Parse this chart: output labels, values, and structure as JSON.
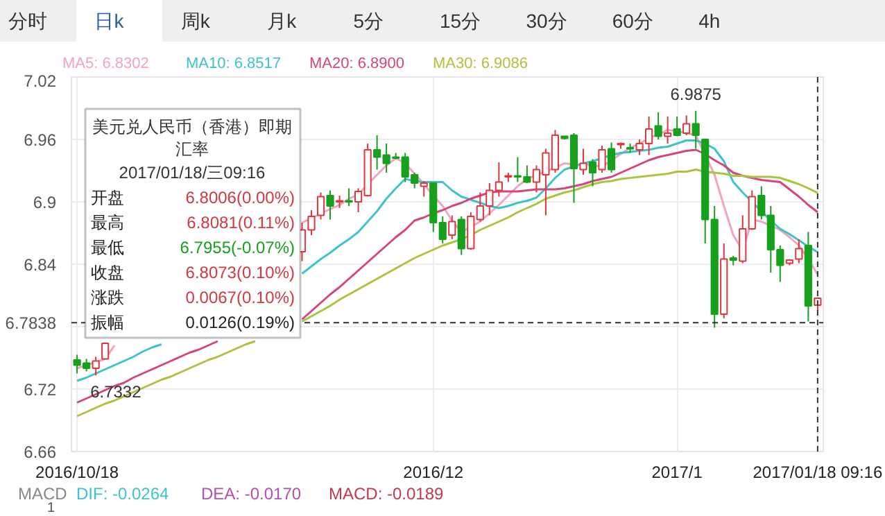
{
  "chart_data": {
    "type": "candlestick",
    "categories": [
      "2016/10/18",
      null,
      null,
      null,
      null,
      null,
      null,
      null,
      null,
      null,
      null,
      null,
      null,
      null,
      null,
      null,
      null,
      null,
      null,
      null,
      null,
      null,
      null,
      null,
      null,
      null,
      null,
      null,
      null,
      null,
      null,
      null,
      null,
      null,
      null,
      null,
      null,
      null,
      "2016/12",
      null,
      null,
      null,
      null,
      null,
      null,
      null,
      null,
      null,
      null,
      null,
      null,
      null,
      null,
      null,
      null,
      null,
      null,
      null,
      null,
      null,
      null,
      null,
      null,
      null,
      "2017/1",
      null,
      null,
      null,
      null,
      null,
      null,
      null,
      null,
      null,
      null,
      null,
      null,
      null,
      null,
      "2017/01/18 09:16"
    ],
    "ohlc": [
      [
        6.748,
        6.753,
        6.735,
        6.743
      ],
      [
        6.745,
        6.749,
        6.737,
        6.74
      ],
      [
        6.74,
        6.751,
        6.7332,
        6.747
      ],
      [
        6.749,
        6.764,
        6.749,
        6.764
      ],
      null,
      null,
      null,
      null,
      null,
      null,
      null,
      null,
      null,
      null,
      null,
      null,
      null,
      null,
      null,
      null,
      null,
      null,
      null,
      null,
      [
        6.852,
        6.88,
        6.843,
        6.873
      ],
      [
        6.873,
        6.892,
        6.868,
        6.886
      ],
      [
        6.887,
        6.909,
        6.883,
        6.905
      ],
      [
        6.906,
        6.911,
        6.883,
        6.896
      ],
      [
        6.9,
        6.906,
        6.894,
        6.901
      ],
      [
        6.901,
        6.913,
        6.896,
        6.9
      ],
      [
        6.9,
        6.913,
        6.89,
        6.91
      ],
      [
        6.906,
        6.956,
        6.905,
        6.95
      ],
      [
        6.95,
        6.964,
        6.931,
        6.943
      ],
      [
        6.945,
        6.956,
        6.928,
        6.937
      ],
      [
        6.943,
        6.947,
        6.941,
        6.942
      ],
      [
        6.943,
        6.947,
        6.919,
        6.924
      ],
      [
        6.926,
        6.928,
        6.913,
        6.918
      ],
      [
        6.915,
        6.92,
        6.905,
        6.918
      ],
      [
        6.918,
        6.918,
        6.871,
        6.88
      ],
      [
        6.88,
        6.886,
        6.86,
        6.864
      ],
      [
        6.868,
        6.887,
        6.864,
        6.881
      ],
      [
        6.883,
        6.886,
        6.849,
        6.855
      ],
      [
        6.855,
        6.89,
        6.854,
        6.886
      ],
      [
        6.883,
        6.909,
        6.881,
        6.896
      ],
      [
        6.896,
        6.918,
        6.887,
        6.911
      ],
      [
        6.911,
        6.938,
        6.905,
        6.919
      ],
      [
        6.924,
        6.928,
        6.919,
        6.925
      ],
      [
        6.925,
        6.943,
        6.919,
        6.924
      ],
      [
        6.924,
        6.935,
        6.918,
        6.919
      ],
      [
        6.919,
        6.935,
        6.909,
        6.931
      ],
      [
        6.926,
        6.951,
        6.887,
        6.947
      ],
      [
        6.931,
        6.969,
        6.928,
        6.964
      ],
      [
        6.963,
        6.963,
        6.96,
        6.961
      ],
      [
        6.964,
        6.966,
        6.899,
        6.932
      ],
      [
        6.931,
        6.951,
        6.926,
        6.937
      ],
      [
        6.938,
        6.941,
        6.915,
        6.928
      ],
      [
        6.931,
        6.954,
        6.928,
        6.95
      ],
      [
        6.951,
        6.957,
        6.928,
        6.931
      ],
      [
        6.955,
        6.957,
        6.951,
        6.956
      ],
      [
        6.952,
        6.956,
        6.947,
        6.951
      ],
      [
        6.95,
        6.96,
        6.945,
        6.956
      ],
      [
        6.956,
        6.982,
        6.945,
        6.97
      ],
      [
        6.973,
        6.986,
        6.96,
        6.963
      ],
      [
        6.963,
        6.982,
        6.956,
        6.966
      ],
      [
        6.97,
        6.982,
        6.963,
        6.964
      ],
      [
        6.966,
        6.983,
        6.964,
        6.975
      ],
      [
        6.975,
        6.9875,
        6.951,
        6.964
      ],
      [
        6.96,
        6.96,
        6.86,
        6.883
      ],
      [
        6.883,
        6.896,
        6.779,
        6.792
      ],
      [
        6.792,
        6.86,
        6.788,
        6.845
      ],
      [
        6.846,
        6.848,
        6.839,
        6.844
      ],
      [
        6.843,
        6.887,
        6.841,
        6.874
      ],
      [
        6.874,
        6.911,
        6.873,
        6.905
      ],
      [
        6.906,
        6.915,
        6.883,
        6.887
      ],
      [
        6.887,
        6.896,
        6.832,
        6.854
      ],
      [
        6.854,
        6.858,
        6.823,
        6.839
      ],
      [
        6.841,
        6.845,
        6.839,
        6.844
      ],
      [
        6.845,
        6.864,
        6.841,
        6.855
      ],
      [
        6.858,
        6.871,
        6.785,
        6.8
      ],
      [
        6.8006,
        6.8081,
        6.7955,
        6.8073
      ]
    ],
    "series": [
      {
        "name": "MA5: 6.8302",
        "type": "line",
        "color": "#f2a3bf",
        "values": [
          6.74,
          6.743,
          6.746,
          6.749,
          6.762,
          null,
          null,
          null,
          null,
          null,
          null,
          null,
          null,
          null,
          null,
          null,
          null,
          null,
          null,
          null,
          null,
          null,
          null,
          null,
          6.88,
          6.884,
          6.889,
          6.893,
          6.897,
          6.903,
          6.907,
          6.917,
          6.926,
          6.935,
          6.942,
          6.937,
          6.927,
          6.917,
          6.906,
          6.896,
          6.882,
          6.871,
          6.876,
          6.881,
          6.889,
          6.897,
          6.906,
          6.915,
          6.922,
          6.926,
          6.929,
          6.933,
          6.937,
          6.936,
          6.936,
          6.935,
          6.934,
          6.94,
          6.946,
          6.952,
          6.956,
          6.961,
          6.965,
          6.969,
          6.968,
          6.966,
          6.964,
          6.945,
          6.926,
          6.896,
          6.868,
          6.853,
          6.883,
          6.881,
          6.877,
          6.873,
          6.866,
          6.858,
          6.845,
          6.8302
        ]
      },
      {
        "name": "MA10: 6.8517",
        "type": "line",
        "color": "#3ec3cc",
        "values": [
          6.728,
          6.731,
          6.735,
          6.739,
          6.743,
          6.747,
          6.751,
          6.756,
          6.76,
          6.763,
          null,
          null,
          null,
          null,
          null,
          null,
          null,
          null,
          null,
          null,
          null,
          null,
          null,
          null,
          6.831,
          6.838,
          6.845,
          6.851,
          6.858,
          6.864,
          6.871,
          6.881,
          6.891,
          6.903,
          6.913,
          6.922,
          6.92,
          6.919,
          6.919,
          6.919,
          6.911,
          6.905,
          6.902,
          6.899,
          6.896,
          6.894,
          6.896,
          6.899,
          6.901,
          6.904,
          6.913,
          6.923,
          6.931,
          6.934,
          6.937,
          6.939,
          6.942,
          6.945,
          6.947,
          6.948,
          6.949,
          6.95,
          6.952,
          6.953,
          6.956,
          6.959,
          6.959,
          6.956,
          6.951,
          6.939,
          6.919,
          6.909,
          6.9,
          6.891,
          6.882,
          6.874,
          6.869,
          6.863,
          6.857,
          6.8517
        ]
      },
      {
        "name": "MA20: 6.8900",
        "type": "line",
        "color": "#d6457a",
        "values": [
          6.707,
          6.711,
          6.715,
          6.719,
          6.723,
          6.726,
          6.731,
          6.735,
          6.739,
          6.743,
          6.747,
          6.751,
          6.755,
          6.758,
          6.762,
          6.766,
          null,
          null,
          null,
          null,
          null,
          null,
          null,
          null,
          6.787,
          6.795,
          6.803,
          6.811,
          6.818,
          6.826,
          6.834,
          6.842,
          6.85,
          6.858,
          6.866,
          6.873,
          6.882,
          6.885,
          6.889,
          6.892,
          6.896,
          6.899,
          6.903,
          6.906,
          6.909,
          6.91,
          6.91,
          6.91,
          6.911,
          6.912,
          6.912,
          6.912,
          6.913,
          6.915,
          6.917,
          6.92,
          6.922,
          6.924,
          6.928,
          6.932,
          6.936,
          6.94,
          6.943,
          6.945,
          6.947,
          6.949,
          6.95,
          6.946,
          6.94,
          6.935,
          6.928,
          6.925,
          6.923,
          6.921,
          6.92,
          6.919,
          6.912,
          6.905,
          6.897,
          6.89
        ]
      },
      {
        "name": "MA30: 6.9086",
        "type": "line",
        "color": "#a9c43e",
        "values": [
          6.694,
          6.698,
          6.702,
          6.706,
          6.709,
          6.713,
          6.717,
          6.721,
          6.725,
          6.729,
          6.732,
          6.736,
          6.74,
          6.744,
          6.748,
          6.751,
          6.755,
          6.759,
          6.763,
          6.766,
          null,
          null,
          null,
          null,
          6.785,
          6.79,
          6.795,
          6.8,
          6.806,
          6.811,
          6.816,
          6.821,
          6.826,
          6.831,
          6.836,
          6.841,
          6.846,
          6.85,
          6.854,
          6.858,
          6.861,
          6.864,
          6.868,
          6.873,
          6.877,
          6.881,
          6.885,
          6.89,
          6.894,
          6.898,
          6.903,
          6.906,
          6.909,
          6.911,
          6.914,
          6.917,
          6.919,
          6.92,
          6.922,
          6.923,
          6.924,
          6.925,
          6.926,
          6.927,
          6.929,
          6.929,
          6.931,
          6.929,
          6.928,
          6.927,
          6.925,
          6.925,
          6.924,
          6.924,
          6.924,
          6.923,
          6.92,
          6.917,
          6.913,
          6.9086
        ]
      }
    ],
    "ylim": [
      6.66,
      7.02
    ],
    "yticks": [
      7.02,
      6.96,
      6.9,
      6.84,
      {
        "value": 6.78,
        "label": null
      },
      6.72,
      6.66
    ],
    "grid": true,
    "ref_lines": [
      {
        "axis": "y",
        "value": 6.7838,
        "label": "6.7838",
        "line_style": "dashed"
      },
      {
        "axis": "x",
        "value": "2017/01/18 09:16",
        "line_style": "dashed"
      }
    ],
    "annotations": [
      "分时",
      "日k",
      "周k",
      "月k",
      "5分",
      "15分",
      "30分",
      "60分",
      "4h",
      "美元兑人民币（香港）即期",
      "汇率",
      "2017/01/18/三09:16",
      "开盘",
      "6.8006(0.00%)",
      "最高",
      "6.8081(0.11%)",
      "最低",
      "6.7955(-0.07%)",
      "收盘",
      "6.8073(0.10%)",
      "涨跌",
      "0.0067(0.10%)",
      "振幅",
      "0.0126(0.19%)",
      "MACD",
      "DIF: -0.0264",
      "DEA: -0.0170",
      "MACD: -0.0189",
      "1",
      "6.9875",
      "6.7332"
    ]
  }
}
